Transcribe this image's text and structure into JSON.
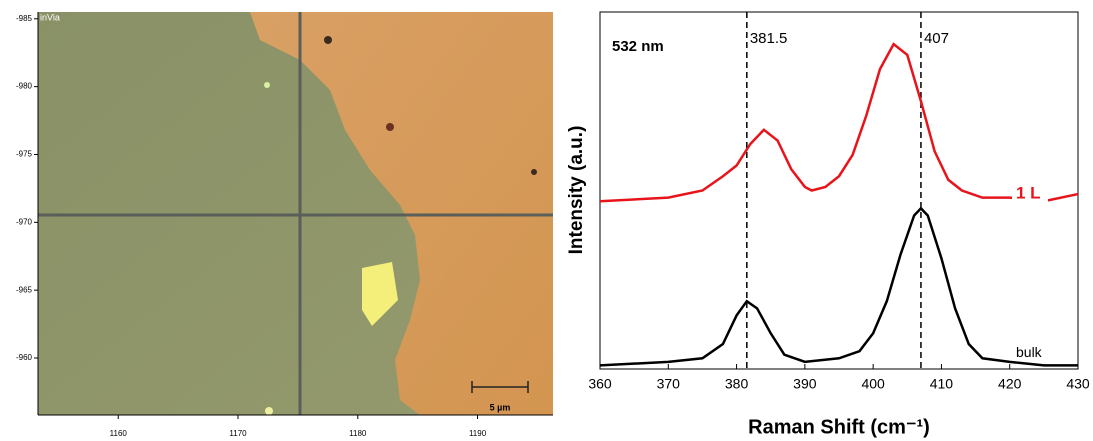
{
  "chart_data": [
    {
      "type": "image",
      "annotations": [
        "inVia",
        "5 µm"
      ],
      "xlim": [
        1153.3,
        1196.3
      ],
      "xticks": [
        1160,
        1170,
        1180,
        1190
      ],
      "ylim": [
        -955.8,
        -985.5
      ],
      "yticks": [
        -985,
        -980,
        -975,
        -970,
        -965,
        -960
      ]
    },
    {
      "type": "line",
      "title": "532 nm",
      "xlabel": "Raman Shift (cm⁻¹)",
      "ylabel": "Intensity (a.u.)",
      "xlim": [
        360,
        430
      ],
      "xticks": [
        360,
        370,
        380,
        390,
        400,
        410,
        420,
        430
      ],
      "ylim": [
        0,
        1
      ],
      "vlines": [
        381.5,
        407
      ],
      "series": [
        {
          "name": "1 L",
          "color": "#e8141b",
          "x": [
            360,
            370,
            375,
            378,
            380,
            382,
            384,
            386,
            388,
            390,
            391,
            393,
            395,
            397,
            399,
            401,
            403,
            405,
            407,
            409,
            411,
            413,
            416,
            420,
            425,
            430
          ],
          "values": [
            0.47,
            0.48,
            0.5,
            0.54,
            0.57,
            0.63,
            0.67,
            0.64,
            0.56,
            0.51,
            0.5,
            0.51,
            0.54,
            0.6,
            0.71,
            0.84,
            0.91,
            0.88,
            0.75,
            0.61,
            0.53,
            0.5,
            0.48,
            0.48,
            0.47,
            0.49
          ]
        },
        {
          "name": "bulk",
          "color": "#000000",
          "x": [
            360,
            370,
            375,
            378,
            380,
            381.5,
            383,
            385,
            387,
            390,
            395,
            398,
            400,
            402,
            404,
            406,
            407,
            408,
            410,
            412,
            414,
            416,
            420,
            425,
            430
          ],
          "values": [
            0.01,
            0.02,
            0.03,
            0.07,
            0.15,
            0.19,
            0.17,
            0.1,
            0.04,
            0.02,
            0.03,
            0.05,
            0.1,
            0.19,
            0.32,
            0.43,
            0.45,
            0.43,
            0.31,
            0.17,
            0.07,
            0.03,
            0.02,
            0.01,
            0.01
          ]
        }
      ]
    }
  ]
}
